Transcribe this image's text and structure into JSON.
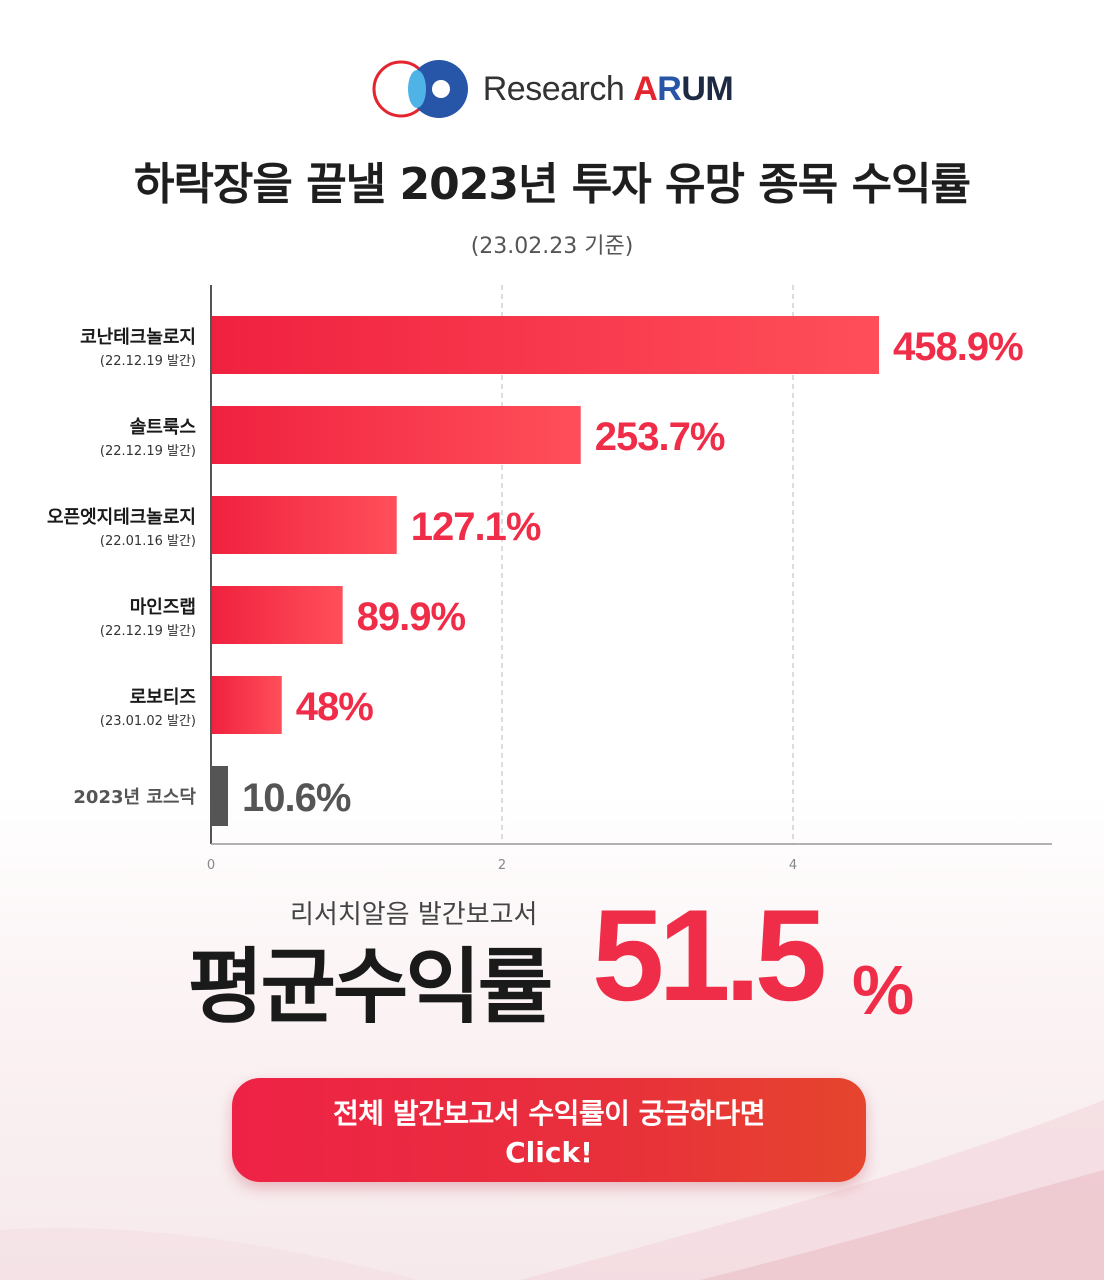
{
  "brand": {
    "name_prefix": "Research ",
    "name_a": "A",
    "name_r": "R",
    "name_um": "UM"
  },
  "header": {
    "title": "하락장을 끝낼 2023년 투자 유망 종목 수익률",
    "subtitle": "(23.02.23 기준)"
  },
  "chart_data": {
    "type": "bar",
    "orientation": "horizontal",
    "categories": [
      {
        "name": "코난테크놀로지",
        "note": "(22.12.19 발간)"
      },
      {
        "name": "솔트룩스",
        "note": "(22.12.19 발간)"
      },
      {
        "name": "오픈엣지테크놀로지",
        "note": "(22.01.16 발간)"
      },
      {
        "name": "마인즈랩",
        "note": "(22.12.19 발간)"
      },
      {
        "name": "로보티즈",
        "note": "(23.01.02 발간)"
      },
      {
        "name": "2023년 코스닥",
        "note": ""
      }
    ],
    "values": [
      458.9,
      253.7,
      127.1,
      89.9,
      48,
      10.6
    ],
    "value_labels": [
      "458.9%",
      "253.7%",
      "127.1%",
      "89.9%",
      "48%",
      "10.6%"
    ],
    "x_ticks": [
      "0",
      "2",
      "4"
    ],
    "grid": true,
    "colors": {
      "highlight": "#ef2d48",
      "benchmark": "#555555"
    }
  },
  "summary": {
    "label": "리서치알음 발간보고서",
    "title": "평균수익률",
    "value": "51.5",
    "unit": "%"
  },
  "cta": {
    "line1": "전체 발간보고서 수익률이 궁금하다면",
    "line2": "Click!"
  }
}
